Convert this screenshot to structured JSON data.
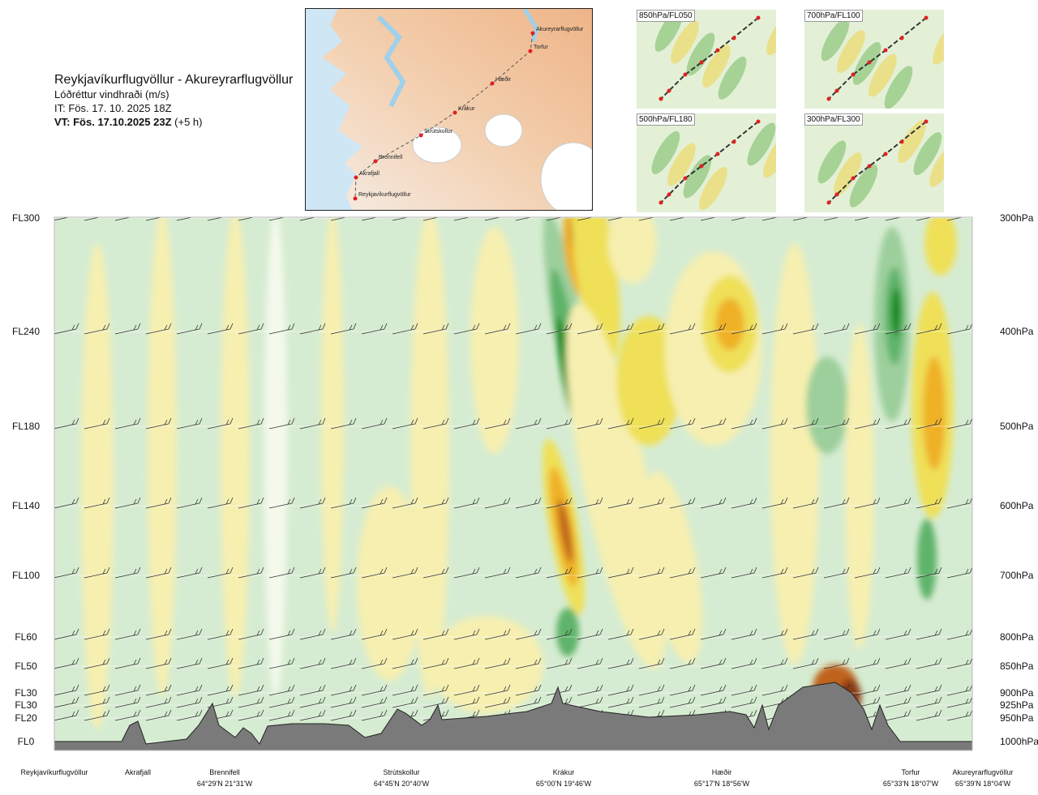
{
  "header": {
    "title": "Reykjavíkurflugvöllur - Akureyrarflugvöllur",
    "subtitle": "Lóðréttur vindhraði (m/s)",
    "init_time": "IT: Fös. 17. 10. 2025 18Z",
    "valid_time": "VT: Fös. 17.10.2025 23Z",
    "valid_offset": "(+5 h)"
  },
  "map": {
    "waypoints": [
      "Akureyrarflugvöllur",
      "Torfur",
      "Hæðir",
      "Krákur",
      "Strútskollur",
      "Brennifell",
      "Akrafjall",
      "Reykjavíkurflugvöllur"
    ]
  },
  "thumbnails": [
    {
      "label": "850hPa/FL050"
    },
    {
      "label": "700hPa/FL100"
    },
    {
      "label": "500hPa/FL180"
    },
    {
      "label": "300hPa/FL300"
    }
  ],
  "chart_data": {
    "type": "heatmap",
    "title": "Reykjavíkurflugvöllur - Akureyrarflugvöllur",
    "quantity": "Lóðréttur vindhraði (m/s)",
    "levels": [
      {
        "fl": "FL300",
        "hpa": "300hPa"
      },
      {
        "fl": "FL240",
        "hpa": "400hPa"
      },
      {
        "fl": "FL180",
        "hpa": "500hPa"
      },
      {
        "fl": "FL140",
        "hpa": "600hPa"
      },
      {
        "fl": "FL100",
        "hpa": "700hPa"
      },
      {
        "fl": "FL60",
        "hpa": "800hPa"
      },
      {
        "fl": "FL50",
        "hpa": "850hPa"
      },
      {
        "fl": "FL30",
        "hpa": "900hPa"
      },
      {
        "fl": "FL30",
        "hpa": "925hPa"
      },
      {
        "fl": "FL20",
        "hpa": "950hPa"
      },
      {
        "fl": "FL0",
        "hpa": "1000hPa"
      }
    ],
    "locations": [
      {
        "name": "Reykjavíkurflugvöllur",
        "coord": ""
      },
      {
        "name": "Akrafjall",
        "coord": ""
      },
      {
        "name": "Brennifell",
        "coord": "64°29'N 21°31'W"
      },
      {
        "name": "Strútskollur",
        "coord": "64°45'N 20°40'W"
      },
      {
        "name": "Krákur",
        "coord": "65°00'N 19°46'W"
      },
      {
        "name": "Hæðir",
        "coord": "65°17'N 18°56'W"
      },
      {
        "name": "Torfur",
        "coord": "65°33'N 18°07'W"
      },
      {
        "name": "Akureyrarflugvöllur",
        "coord": "65°39'N 18°04'W"
      }
    ],
    "palette": {
      "down_strong": "#0e8a1d",
      "down_mid": "#5fb36a",
      "down_weak": "#9ccf9c",
      "down_light": "#d6ecd2",
      "neutral": "#f4f9ec",
      "up_light": "#f6efb0",
      "up_weak": "#efe059",
      "up_mid": "#efb126",
      "up_strong": "#c0641c",
      "up_max": "#8a3a14",
      "terrain": "#7a7a7a"
    }
  }
}
